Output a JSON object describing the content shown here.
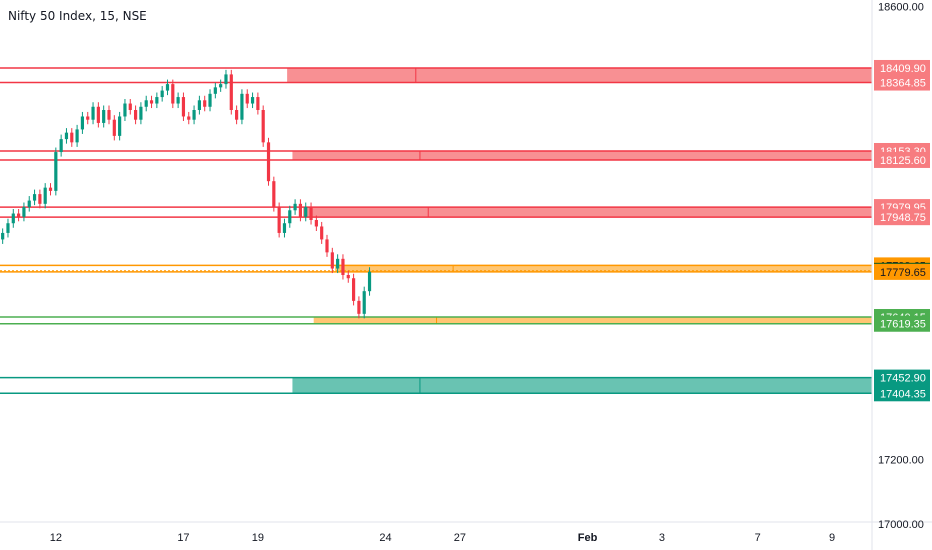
{
  "colors": {
    "resistance": "#f23645",
    "resistance_fill": "#f77c80",
    "pivot": "#ff9800",
    "support_green": "#4caf50",
    "support_teal": "#089981",
    "support_teal_fill": "#4fb9a4",
    "last_price_bg": "#1b5e20",
    "candle_up": "#089981",
    "candle_down": "#f23645",
    "axis_text": "#131722",
    "axis_line": "#e0e3eb"
  },
  "chart_data": {
    "type": "candlestick",
    "title": "Nifty 50 Index, 15, NSE",
    "y_axis": {
      "min": 16920,
      "max": 18620,
      "ticks": [
        18600.0,
        17200.0,
        17000.0
      ],
      "tick_labels": [
        "18600.00",
        "17200.00",
        "17000.00"
      ]
    },
    "x_axis": {
      "tick_labels": [
        "12",
        "17",
        "19",
        "24",
        "27",
        "Feb",
        "3",
        "7",
        "9"
      ],
      "tick_index": [
        10,
        34,
        48,
        72,
        86,
        110,
        124,
        142,
        156
      ],
      "bold": [
        "Feb"
      ],
      "n_slots": 164
    },
    "price_series_close": [
      17900,
      17930,
      17960,
      17950,
      17980,
      18000,
      18020,
      17990,
      18040,
      18030,
      18150,
      18190,
      18210,
      18180,
      18220,
      18260,
      18250,
      18290,
      18240,
      18280,
      18250,
      18200,
      18260,
      18300,
      18280,
      18250,
      18290,
      18310,
      18300,
      18320,
      18340,
      18360,
      18300,
      18320,
      18260,
      18250,
      18280,
      18310,
      18290,
      18330,
      18350,
      18360,
      18390,
      18280,
      18250,
      18330,
      18300,
      18320,
      18280,
      18180,
      18060,
      17980,
      17900,
      17930,
      17970,
      17990,
      17950,
      17980,
      17940,
      17920,
      17880,
      17840,
      17790,
      17820,
      17770,
      17760,
      17690,
      17650,
      17720,
      17780
    ],
    "levels": [
      {
        "label": "18409.90",
        "price": 18409.9,
        "kind": "resistance",
        "zone_start": 54
      },
      {
        "label": "18364.85",
        "price": 18364.85,
        "kind": "resistance",
        "zone_start": 54
      },
      {
        "label": "18153.30",
        "price": 18153.3,
        "kind": "resistance",
        "zone_start": 55
      },
      {
        "label": "18125.60",
        "price": 18125.6,
        "kind": "resistance",
        "zone_start": 55
      },
      {
        "label": "17979.95",
        "price": 17979.95,
        "kind": "resistance",
        "zone_start": 57
      },
      {
        "label": "17948.75",
        "price": 17948.75,
        "kind": "resistance",
        "zone_start": 57
      },
      {
        "label": "17799.65",
        "price": 17799.65,
        "kind": "pivot",
        "zone_start": 63
      },
      {
        "label": "17782.95",
        "price": 17782.95,
        "kind": "last",
        "zone_start": 0
      },
      {
        "label": "17779.65",
        "price": 17779.65,
        "kind": "pivot",
        "zone_start": 63
      },
      {
        "label": "17640.15",
        "price": 17640.15,
        "kind": "support_green",
        "zone_start": 59
      },
      {
        "label": "17619.35",
        "price": 17619.35,
        "kind": "support_green",
        "zone_start": 59
      },
      {
        "label": "17452.90",
        "price": 17452.9,
        "kind": "support_teal",
        "zone_start": 55
      },
      {
        "label": "17404.35",
        "price": 17404.35,
        "kind": "support_teal",
        "zone_start": 55
      }
    ],
    "zones": [
      {
        "top": 18409.9,
        "bottom": 18364.85,
        "kind": "resistance",
        "start": 54
      },
      {
        "top": 18153.3,
        "bottom": 18125.6,
        "kind": "resistance",
        "start": 55
      },
      {
        "top": 17979.95,
        "bottom": 17948.75,
        "kind": "resistance",
        "start": 57
      },
      {
        "top": 17799.65,
        "bottom": 17779.65,
        "kind": "pivot",
        "start": 63
      },
      {
        "top": 17640.15,
        "bottom": 17619.35,
        "kind": "pivot",
        "start": 59
      },
      {
        "top": 17452.9,
        "bottom": 17404.35,
        "kind": "support_teal",
        "start": 55
      }
    ]
  }
}
